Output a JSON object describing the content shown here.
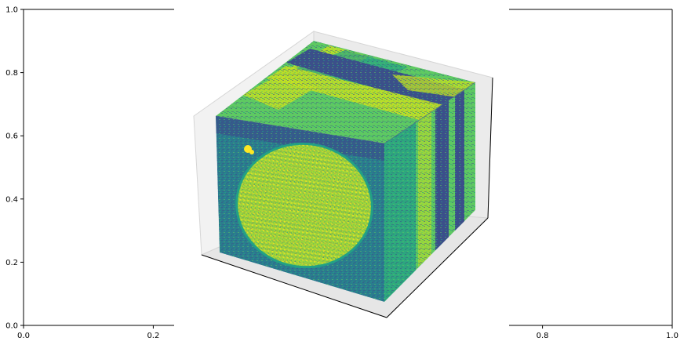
{
  "chart_data": [
    {
      "type": "scatter",
      "title": "",
      "xlabel": "",
      "ylabel": "",
      "xlim": [
        0,
        1
      ],
      "ylim": [
        0,
        1
      ],
      "x_ticks": [
        "0.0",
        "0.2",
        "0.8",
        "1.0"
      ],
      "y_ticks": [
        "0.0",
        "0.2",
        "0.4",
        "0.6",
        "0.8",
        "1.0"
      ],
      "grid": false,
      "series": []
    },
    {
      "type": "heatmap",
      "title": "",
      "projection": "3d",
      "render": "voxels",
      "colormap": "viridis",
      "axes_visible": false,
      "description_free": true,
      "colors": {
        "dark": "#3b4f8a",
        "mid": "#2a7d8e",
        "teal": "#22a185",
        "green": "#5ec962",
        "yellow": "#c2df23",
        "bright": "#fde725"
      }
    }
  ]
}
